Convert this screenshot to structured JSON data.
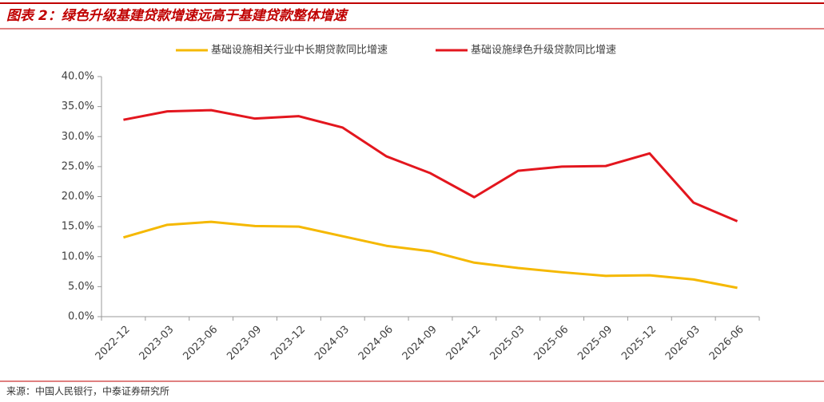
{
  "chart_data": {
    "type": "line",
    "title": "图表 2：绿色升级基建贷款增速远高于基建贷款整体增速",
    "source": "来源：中国人民银行，中泰证券研究所",
    "categories": [
      "2022-12",
      "2023-03",
      "2023-06",
      "2023-09",
      "2023-12",
      "2024-03",
      "2024-06",
      "2024-09",
      "2024-12",
      "2025-03",
      "2025-06",
      "2025-09",
      "2025-12",
      "2026-03",
      "2026-06"
    ],
    "series": [
      {
        "name": "基础设施相关行业中长期贷款同比增速",
        "color": "#f5b800",
        "values": [
          13.2,
          15.3,
          15.8,
          15.1,
          15.0,
          13.4,
          11.8,
          10.9,
          9.0,
          8.1,
          7.4,
          6.8,
          6.9,
          6.2,
          4.8
        ]
      },
      {
        "name": "基础设施绿色升级贷款同比增速",
        "color": "#e3161e",
        "values": [
          32.8,
          34.2,
          34.4,
          33.0,
          33.4,
          31.5,
          26.7,
          23.9,
          19.9,
          24.3,
          25.0,
          25.1,
          27.2,
          19.0,
          15.9
        ]
      }
    ],
    "ylim": [
      0,
      40
    ],
    "yticks": [
      {
        "value": 0,
        "label": "0.0%"
      },
      {
        "value": 5,
        "label": "5.0%"
      },
      {
        "value": 10,
        "label": "10.0%"
      },
      {
        "value": 15,
        "label": "15.0%"
      },
      {
        "value": 20,
        "label": "20.0%"
      },
      {
        "value": 25,
        "label": "25.0%"
      },
      {
        "value": 30,
        "label": "30.0%"
      },
      {
        "value": 35,
        "label": "35.0%"
      },
      {
        "value": 40,
        "label": "40.0%"
      }
    ],
    "legend": "top"
  }
}
